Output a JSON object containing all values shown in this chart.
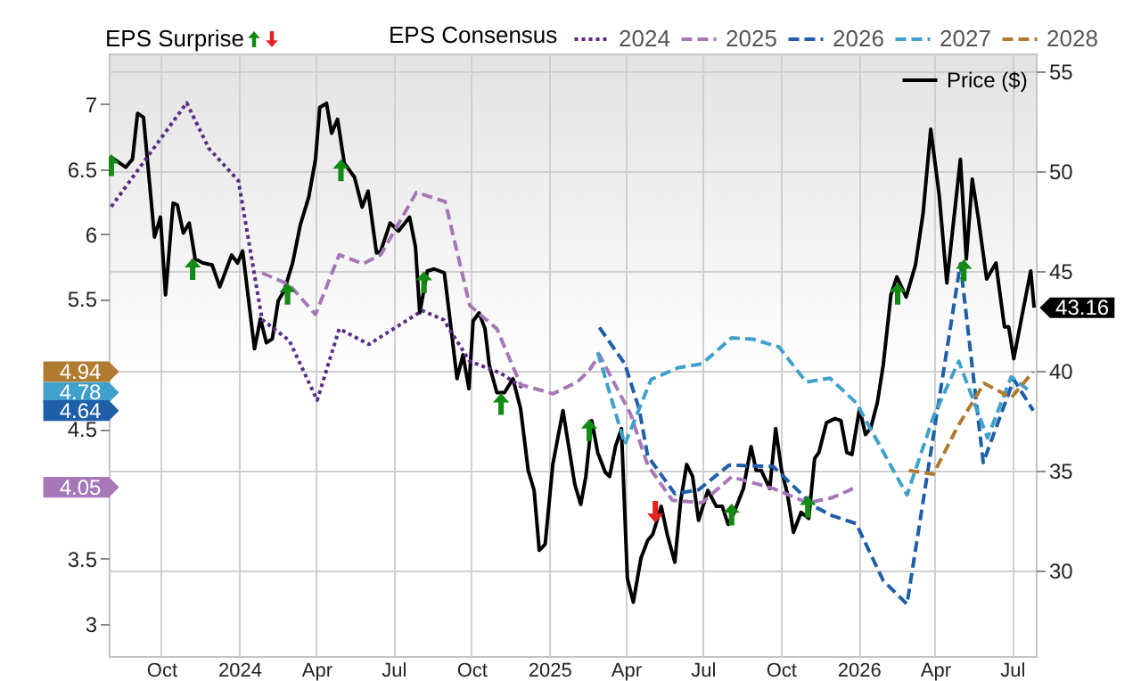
{
  "chart_data": {
    "type": "line",
    "legend_title": "EPS Consensus",
    "legend": "top",
    "grid": true,
    "xlim": [
      "2023-07-31",
      "2026-07-29"
    ],
    "xticks": [
      {
        "value": "2023-10-01",
        "label": "Oct"
      },
      {
        "value": "2024-01-01",
        "label": "2024"
      },
      {
        "value": "2024-04-01",
        "label": "Apr"
      },
      {
        "value": "2024-07-01",
        "label": "Jul"
      },
      {
        "value": "2024-10-01",
        "label": "Oct"
      },
      {
        "value": "2025-01-01",
        "label": "2025"
      },
      {
        "value": "2025-04-01",
        "label": "Apr"
      },
      {
        "value": "2025-07-01",
        "label": "Jul"
      },
      {
        "value": "2025-10-01",
        "label": "Oct"
      },
      {
        "value": "2026-01-01",
        "label": "2026"
      },
      {
        "value": "2026-04-01",
        "label": "Apr"
      },
      {
        "value": "2026-07-01",
        "label": "Jul"
      }
    ],
    "ylim": [
      2.75,
      7.39
    ],
    "yticks": [
      3,
      3.5,
      4.5,
      5.5,
      6,
      6.5,
      7
    ],
    "y2lim": [
      25.7,
      55.9
    ],
    "y2ticks": [
      30,
      35,
      40,
      45,
      50,
      55
    ],
    "annotations": [
      "EPS Surprise",
      "4.94",
      "4.78",
      "4.64",
      "4.05"
    ],
    "series": [
      {
        "name": "Price ($)",
        "color": "#000000",
        "axis": "y2",
        "line_style": "solid",
        "x": [
          "2023-08-03",
          "2023-08-20",
          "2023-08-28",
          "2023-09-03",
          "2023-09-10",
          "2023-09-23",
          "2023-09-30",
          "2023-10-06",
          "2023-10-15",
          "2023-10-20",
          "2023-10-27",
          "2023-11-03",
          "2023-11-10",
          "2023-11-19",
          "2023-11-30",
          "2023-12-09",
          "2023-12-23",
          "2023-12-30",
          "2024-01-05",
          "2024-01-19",
          "2024-01-26",
          "2024-02-02",
          "2024-02-09",
          "2024-02-16",
          "2024-02-23",
          "2024-03-04",
          "2024-03-13",
          "2024-03-23",
          "2024-03-31",
          "2024-04-05",
          "2024-04-13",
          "2024-04-19",
          "2024-04-26",
          "2024-05-04",
          "2024-05-16",
          "2024-05-25",
          "2024-06-01",
          "2024-06-11",
          "2024-06-16",
          "2024-06-27",
          "2024-07-07",
          "2024-07-20",
          "2024-07-27",
          "2024-08-01",
          "2024-08-10",
          "2024-08-18",
          "2024-08-30",
          "2024-09-05",
          "2024-09-14",
          "2024-09-21",
          "2024-09-28",
          "2024-10-03",
          "2024-10-10",
          "2024-10-17",
          "2024-10-22",
          "2024-10-31",
          "2024-11-09",
          "2024-11-19",
          "2024-11-28",
          "2024-12-07",
          "2024-12-14",
          "2024-12-20",
          "2024-12-27",
          "2025-01-05",
          "2025-01-17",
          "2025-01-31",
          "2025-02-07",
          "2025-02-13",
          "2025-02-20",
          "2025-02-27",
          "2025-03-08",
          "2025-03-13",
          "2025-03-20",
          "2025-03-27",
          "2025-04-03",
          "2025-04-10",
          "2025-04-19",
          "2025-04-27",
          "2025-05-03",
          "2025-05-13",
          "2025-05-20",
          "2025-05-29",
          "2025-06-05",
          "2025-06-12",
          "2025-06-19",
          "2025-06-26",
          "2025-07-07",
          "2025-07-17",
          "2025-07-24",
          "2025-07-31",
          "2025-08-07",
          "2025-08-18",
          "2025-08-27",
          "2025-09-02",
          "2025-09-08",
          "2025-09-18",
          "2025-09-25",
          "2025-10-02",
          "2025-10-09",
          "2025-10-16",
          "2025-10-25",
          "2025-11-03",
          "2025-11-10",
          "2025-11-15",
          "2025-11-24",
          "2025-12-04",
          "2025-12-11",
          "2025-12-18",
          "2025-12-24",
          "2026-01-02",
          "2026-01-09",
          "2026-01-15",
          "2026-01-23",
          "2026-01-30",
          "2026-02-08",
          "2026-02-15",
          "2026-02-26",
          "2026-03-09",
          "2026-03-18",
          "2026-03-27",
          "2026-04-06",
          "2026-04-15",
          "2026-05-01",
          "2026-05-08",
          "2026-05-15",
          "2026-05-22",
          "2026-06-01",
          "2026-06-12",
          "2026-06-15",
          "2026-06-22",
          "2026-06-27",
          "2026-07-03",
          "2026-07-12",
          "2026-07-23",
          "2026-07-27"
        ],
        "values": [
          50.7,
          50.2,
          50.6,
          52.9,
          52.7,
          46.7,
          47.7,
          43.8,
          48.4,
          48.3,
          46.9,
          47.4,
          45.6,
          45.4,
          45.3,
          44.2,
          45.8,
          45.4,
          46.0,
          41.1,
          42.6,
          41.4,
          41.6,
          43.5,
          44.0,
          45.4,
          47.3,
          48.7,
          50.6,
          53.2,
          53.4,
          51.9,
          52.6,
          50.4,
          49.7,
          48.2,
          49.0,
          45.9,
          46.0,
          47.4,
          47.0,
          47.7,
          46.2,
          42.9,
          45.0,
          45.1,
          44.9,
          42.8,
          39.6,
          40.8,
          39.1,
          42.5,
          42.9,
          42.1,
          40.3,
          38.9,
          38.9,
          39.6,
          38.1,
          35.0,
          34.0,
          31.0,
          31.3,
          35.3,
          38.0,
          34.3,
          33.3,
          34.7,
          37.5,
          35.9,
          34.9,
          34.7,
          36.2,
          37.1,
          29.6,
          28.4,
          30.6,
          31.5,
          31.8,
          33.2,
          31.8,
          30.4,
          33.5,
          35.3,
          34.7,
          32.5,
          34.0,
          33.2,
          33.2,
          32.3,
          32.9,
          34.1,
          36.2,
          35.0,
          35.0,
          34.1,
          37.1,
          35.0,
          33.8,
          31.9,
          32.9,
          32.6,
          35.6,
          35.9,
          37.4,
          37.6,
          37.5,
          35.9,
          35.8,
          38.1,
          36.8,
          37.1,
          38.4,
          40.3,
          43.8,
          44.7,
          43.7,
          45.3,
          47.9,
          52.1,
          48.8,
          44.4,
          50.6,
          45.6,
          49.6,
          47.7,
          44.6,
          45.4,
          44.4,
          42.2,
          42.2,
          40.6,
          42.6,
          45.0,
          43.16
        ],
        "value_labels": [
          null,
          null,
          null,
          null,
          null,
          null,
          null,
          null,
          null,
          null,
          null,
          null,
          null,
          null,
          null,
          null,
          null,
          null,
          null,
          null,
          null,
          null,
          null,
          null,
          null,
          null,
          null,
          null,
          null,
          null,
          null,
          null,
          null,
          null,
          null,
          null,
          null,
          null,
          null,
          null,
          null,
          null,
          null,
          null,
          null,
          null,
          null,
          null,
          null,
          null,
          null,
          null,
          null,
          null,
          null,
          null,
          null,
          null,
          null,
          null,
          null,
          null,
          null,
          null,
          null,
          null,
          null,
          null,
          null,
          null,
          null,
          null,
          null,
          null,
          null,
          null,
          null,
          null,
          null,
          null,
          null,
          null,
          null,
          null,
          null,
          null,
          null,
          null,
          null,
          null,
          null,
          null,
          null,
          null,
          null,
          null,
          null,
          null,
          null,
          null,
          null,
          null,
          null,
          null,
          null,
          null,
          null,
          null,
          null,
          null,
          null,
          null,
          null,
          null,
          null,
          null,
          null,
          null,
          null,
          null,
          null,
          null,
          null,
          null,
          null,
          null,
          null,
          null,
          null,
          null,
          null,
          null,
          null,
          null,
          "43.16"
        ]
      },
      {
        "name": "2024",
        "color": "#5b2c83",
        "line_style": "dotted",
        "x": [
          "2023-08-03",
          "2023-10-31",
          "2023-11-26",
          "2023-12-31",
          "2024-01-28",
          "2024-02-29",
          "2024-04-02",
          "2024-04-28",
          "2024-06-02",
          "2024-08-04",
          "2024-08-29",
          "2024-09-29",
          "2024-11-04",
          "2024-12-02"
        ],
        "values": [
          6.21,
          7.01,
          6.66,
          6.41,
          5.34,
          5.18,
          4.72,
          5.27,
          5.15,
          5.41,
          5.34,
          5.02,
          4.93,
          4.81
        ]
      },
      {
        "name": "2025",
        "color": "#a678b8",
        "line_style": "dashed",
        "x": [
          "2024-01-28",
          "2024-02-29",
          "2024-03-31",
          "2024-04-28",
          "2024-05-26",
          "2024-06-16",
          "2024-07-28",
          "2024-08-31",
          "2024-09-29",
          "2024-10-31",
          "2024-11-28",
          "2025-01-05",
          "2025-02-03",
          "2025-02-17",
          "2025-03-01",
          "2025-04-07",
          "2025-04-27",
          "2025-05-26",
          "2025-06-30",
          "2025-08-04",
          "2025-09-22",
          "2025-11-02",
          "2025-12-01",
          "2025-12-29"
        ],
        "values": [
          5.7,
          5.61,
          5.38,
          5.84,
          5.77,
          5.84,
          6.32,
          6.25,
          5.45,
          5.27,
          4.84,
          4.77,
          4.86,
          4.95,
          5.07,
          4.61,
          4.22,
          3.95,
          3.93,
          4.13,
          4.04,
          3.93,
          3.97,
          4.05
        ]
      },
      {
        "name": "2026",
        "color": "#1f5fa8",
        "line_style": "dashed",
        "x": [
          "2025-03-01",
          "2025-03-31",
          "2025-04-17",
          "2025-04-27",
          "2025-05-29",
          "2025-06-26",
          "2025-08-01",
          "2025-09-22",
          "2025-11-10",
          "2025-12-01",
          "2025-12-29",
          "2026-01-30",
          "2026-02-27",
          "2026-03-23",
          "2026-05-01",
          "2026-05-28",
          "2026-07-03",
          "2026-07-26"
        ],
        "values": [
          5.28,
          5.0,
          4.65,
          4.29,
          4.0,
          4.03,
          4.22,
          4.21,
          3.9,
          3.83,
          3.77,
          3.33,
          3.15,
          4.15,
          5.77,
          4.24,
          4.88,
          4.64
        ]
      },
      {
        "name": "2027",
        "color": "#3fa0cc",
        "line_style": "dashed",
        "x": [
          "2025-02-27",
          "2025-03-31",
          "2025-05-01",
          "2025-06-02",
          "2025-06-30",
          "2025-08-04",
          "2025-08-29",
          "2025-09-29",
          "2025-10-31",
          "2025-11-28",
          "2025-12-29",
          "2026-02-27",
          "2026-03-30",
          "2026-04-29",
          "2026-06-02",
          "2026-06-30",
          "2026-07-24"
        ],
        "values": [
          5.09,
          4.38,
          4.88,
          4.97,
          5.0,
          5.2,
          5.19,
          5.13,
          4.86,
          4.89,
          4.7,
          3.99,
          4.59,
          5.02,
          4.43,
          4.9,
          4.78
        ]
      },
      {
        "name": "2028",
        "color": "#b07a30",
        "line_style": "dashed",
        "x": [
          "2026-03-01",
          "2026-03-30",
          "2026-04-28",
          "2026-05-29",
          "2026-06-30",
          "2026-07-26"
        ],
        "values": [
          4.18,
          4.15,
          4.52,
          4.85,
          4.74,
          4.94
        ]
      },
      {
        "type": "scatter",
        "color": "#138a13",
        "marker": "triangle",
        "x": [
          "2023-08-03",
          "2023-11-07",
          "2024-02-27",
          "2024-04-30",
          "2024-08-06",
          "2024-11-05",
          "2025-02-17",
          "2025-08-04",
          "2025-11-02",
          "2026-02-16",
          "2026-05-05"
        ],
        "values": [
          6.53,
          5.73,
          5.54,
          6.49,
          5.63,
          4.69,
          4.49,
          3.84,
          3.9,
          5.54,
          5.72
        ]
      },
      {
        "type": "scatter",
        "color": "#e52222",
        "marker": "triangle-down",
        "x": [
          "2025-05-06"
        ],
        "values": [
          3.86
        ]
      }
    ]
  }
}
